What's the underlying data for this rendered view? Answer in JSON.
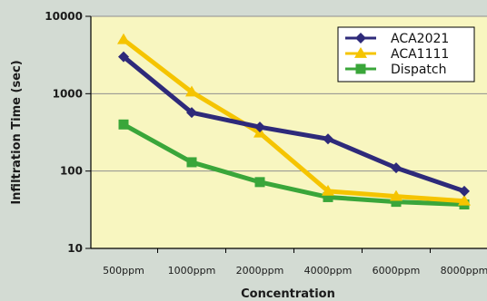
{
  "chart_data": {
    "type": "line",
    "title": "",
    "xlabel": "Concentration",
    "ylabel": "Infiltration Time (sec)",
    "yscale": "log",
    "ylim": [
      10,
      10000
    ],
    "yticks": [
      {
        "value": 10,
        "label": "10"
      },
      {
        "value": 100,
        "label": "100"
      },
      {
        "value": 1000,
        "label": "1000"
      },
      {
        "value": 10000,
        "label": "10000"
      }
    ],
    "categories": [
      "500ppm",
      "1000ppm",
      "2000ppm",
      "4000ppm",
      "6000ppm",
      "8000ppm"
    ],
    "grid": true,
    "legend": "top-right",
    "series": [
      {
        "name": "ACA2021",
        "color": "#2e2a7a",
        "marker": "diamond",
        "values": [
          3000,
          570,
          370,
          260,
          110,
          55
        ]
      },
      {
        "name": "ACA1111",
        "color": "#f5c400",
        "marker": "triangle",
        "values": [
          5000,
          1050,
          310,
          55,
          47,
          41
        ]
      },
      {
        "name": "Dispatch",
        "color": "#3aa63a",
        "marker": "square",
        "values": [
          400,
          130,
          72,
          46,
          40,
          37
        ]
      }
    ],
    "colors": {
      "plot_bg": "#f8f6c0",
      "grid": "#8f8f8f",
      "axis": "#000000"
    }
  }
}
